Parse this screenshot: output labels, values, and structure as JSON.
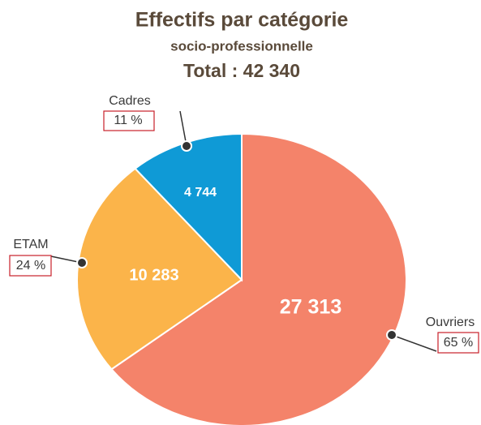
{
  "chart_data": {
    "type": "pie",
    "title": "Effectifs par catégorie",
    "subtitle": "socio-professionnelle",
    "total": "Total : 42 340",
    "categories": [
      "Ouvriers",
      "ETAM",
      "Cadres"
    ],
    "values": [
      27313,
      10283,
      4744
    ],
    "value_labels": [
      "27 313",
      "10 283",
      "4 744"
    ],
    "percent_labels": [
      "65 %",
      "24 %",
      "11 %"
    ],
    "colors": [
      "#f4836a",
      "#fbb44a",
      "#0f9ad6"
    ]
  }
}
